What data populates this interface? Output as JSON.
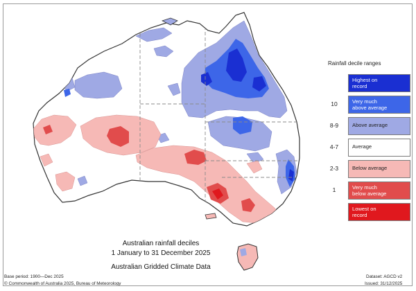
{
  "map": {
    "title_line1": "Australian rainfall deciles",
    "title_line2": "1 January to 31 December 2025",
    "title_line3": "Australian Gridded Climate Data",
    "base_period": "Base period: 1900—Dec 2025",
    "copyright": "© Commonwealth of Australia 2025, Bureau of Meteorology",
    "dataset": "Dataset: AGCD v2",
    "issued": "Issued: 31/12/2025"
  },
  "legend": {
    "title": "Rainfall decile ranges",
    "rows": [
      {
        "decile": "",
        "label_line1": "Highest on",
        "label_line2": "record",
        "color": "#1a2fd2"
      },
      {
        "decile": "10",
        "label_line1": "Very much",
        "label_line2": "above average",
        "color": "#3d66e8"
      },
      {
        "decile": "8-9",
        "label_line1": "Above average",
        "label_line2": "",
        "color": "#9fa9e4"
      },
      {
        "decile": "4-7",
        "label_line1": "Average",
        "label_line2": "",
        "color": "#ffffff"
      },
      {
        "decile": "2-3",
        "label_line1": "Below average",
        "label_line2": "",
        "color": "#f6b9b6"
      },
      {
        "decile": "1",
        "label_line1": "Very much",
        "label_line2": "below average",
        "color": "#e14c4c"
      },
      {
        "decile": "",
        "label_line1": "Lowest on",
        "label_line2": "record",
        "color": "#e0181e"
      }
    ]
  },
  "colors": {
    "highest": "#1a2fd2",
    "very_much_above": "#3d66e8",
    "above": "#9fa9e4",
    "average": "#ffffff",
    "below": "#f6b9b6",
    "very_much_below": "#e14c4c",
    "lowest": "#e0181e",
    "outline": "#333333",
    "border_dash": "#8a8a8a"
  }
}
